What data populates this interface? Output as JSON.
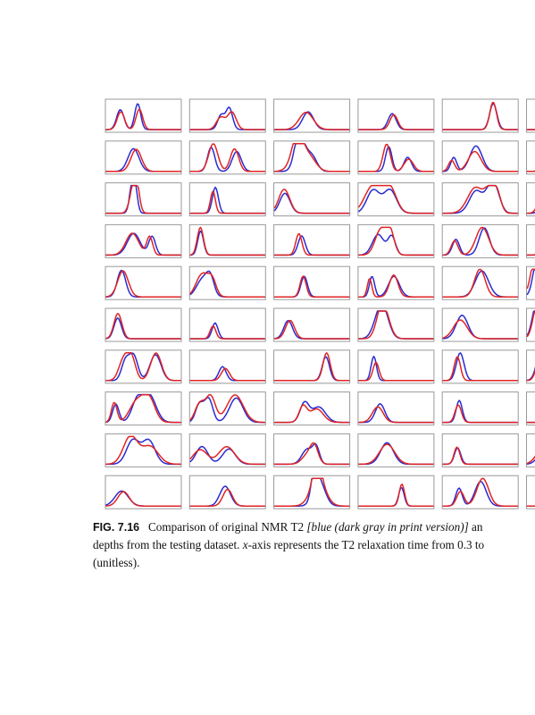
{
  "figure": {
    "label": "FIG. 7.16",
    "caption_line1_a": "Comparison of original NMR T2 ",
    "caption_line1_italic": "[blue (dark gray in print version)]",
    "caption_line1_b": " an",
    "caption_line2_a": "depths from the testing dataset. ",
    "caption_line2_italic": "x",
    "caption_line2_b": "-axis represents the T2 relaxation time from 0.3 to",
    "caption_line3": "(unitless).",
    "colors": {
      "original": "#2b2bd0",
      "predicted": "#e02424",
      "frame": "#9a9a9a"
    },
    "grid": {
      "rows": 10,
      "columns_visible": 6
    }
  }
}
